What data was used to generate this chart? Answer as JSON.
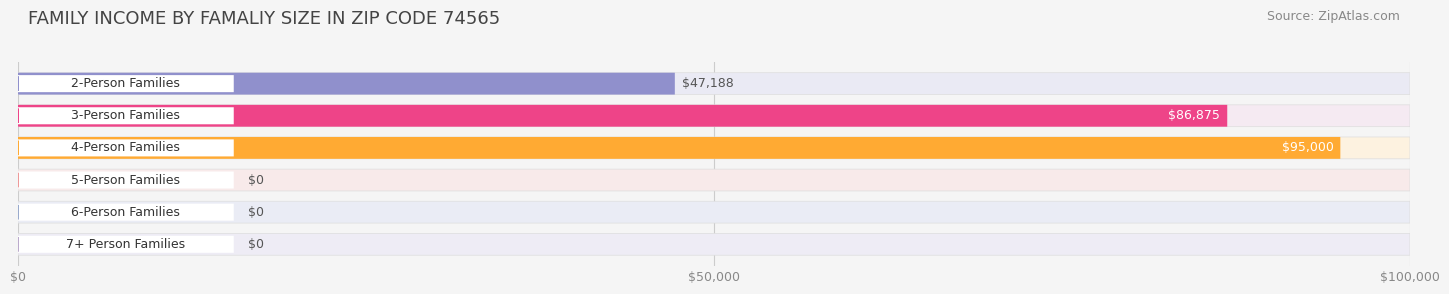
{
  "title": "FAMILY INCOME BY FAMALIY SIZE IN ZIP CODE 74565",
  "source": "Source: ZipAtlas.com",
  "categories": [
    "2-Person Families",
    "3-Person Families",
    "4-Person Families",
    "5-Person Families",
    "6-Person Families",
    "7+ Person Families"
  ],
  "values": [
    47188,
    86875,
    95000,
    0,
    0,
    0
  ],
  "bar_colors": [
    "#9090cc",
    "#ee4488",
    "#ffaa33",
    "#ee9999",
    "#99aacc",
    "#bbaacc"
  ],
  "bar_bg_colors": [
    "#eaeaf4",
    "#f5eaf2",
    "#fdf2e0",
    "#f8eaea",
    "#eaecf5",
    "#eeecf5"
  ],
  "label_border_colors": [
    "#9090cc",
    "#ee4488",
    "#ffaa33",
    "#ee9999",
    "#99aacc",
    "#bbaacc"
  ],
  "value_label_colors": [
    "#555555",
    "#ffffff",
    "#ffffff",
    "#555555",
    "#555555",
    "#555555"
  ],
  "xlim": [
    0,
    100000
  ],
  "xticks": [
    0,
    50000,
    100000
  ],
  "xticklabels": [
    "$0",
    "$50,000",
    "$100,000"
  ],
  "title_fontsize": 13,
  "source_fontsize": 9,
  "bar_label_fontsize": 9,
  "category_fontsize": 9,
  "background_color": "#f5f5f5",
  "fig_width": 14.06,
  "fig_height": 3.05,
  "bar_height": 0.68,
  "bar_gap": 0.32
}
